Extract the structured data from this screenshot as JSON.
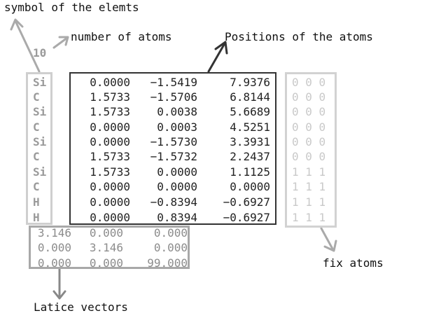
{
  "labels": {
    "symbol": "symbol of the elemts",
    "num_atoms": "number of atoms",
    "positions": "Positions of the atoms",
    "fix": "fix atoms",
    "lattice": "Latice vectors"
  },
  "num_atoms_value": "10",
  "atoms": [
    {
      "symbol": "Si",
      "x": "0.0000",
      "y": "−1.5419",
      "z": "7.9376",
      "fix": "0 0 0"
    },
    {
      "symbol": "C",
      "x": "1.5733",
      "y": "−1.5706",
      "z": "6.8144",
      "fix": "0 0 0"
    },
    {
      "symbol": "Si",
      "x": "1.5733",
      "y": "0.0038",
      "z": "5.6689",
      "fix": "0 0 0"
    },
    {
      "symbol": "C",
      "x": "0.0000",
      "y": "0.0003",
      "z": "4.5251",
      "fix": "0 0 0"
    },
    {
      "symbol": "Si",
      "x": "0.0000",
      "y": "−1.5730",
      "z": "3.3931",
      "fix": "0 0 0"
    },
    {
      "symbol": "C",
      "x": "1.5733",
      "y": "−1.5732",
      "z": "2.2437",
      "fix": "0 0 0"
    },
    {
      "symbol": "Si",
      "x": "1.5733",
      "y": "0.0000",
      "z": "1.1125",
      "fix": "1 1 1"
    },
    {
      "symbol": "C",
      "x": "0.0000",
      "y": "0.0000",
      "z": "0.0000",
      "fix": "1 1 1"
    },
    {
      "symbol": "H",
      "x": "0.0000",
      "y": "−0.8394",
      "z": "−0.6927",
      "fix": "1 1 1"
    },
    {
      "symbol": "H",
      "x": "0.0000",
      "y": "0.8394",
      "z": "−0.6927",
      "fix": "1 1 1"
    }
  ],
  "lattice": [
    [
      "3.146",
      "0.000",
      "0.000"
    ],
    [
      "0.000",
      "3.146",
      "0.000"
    ],
    [
      "0.000",
      "0.000",
      "99.000"
    ]
  ]
}
